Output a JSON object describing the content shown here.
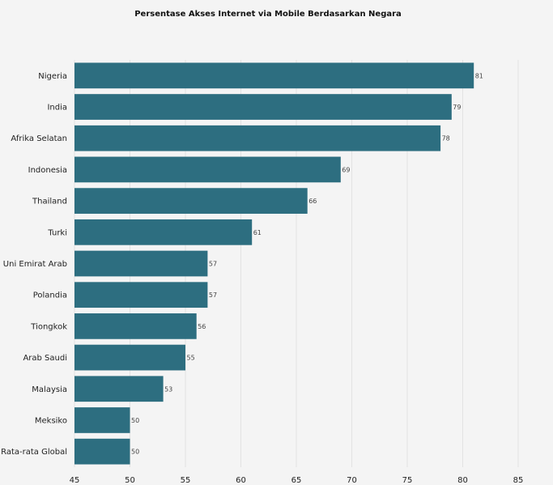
{
  "chart_data": {
    "type": "bar",
    "orientation": "horizontal",
    "title": "Persentase Akses Internet via Mobile Berdasarkan Negara",
    "xlabel": "",
    "ylabel": "",
    "categories": [
      "Nigeria",
      "India",
      "Afrika Selatan",
      "Indonesia",
      "Thailand",
      "Turki",
      "Uni Emirat Arab",
      "Polandia",
      "Tiongkok",
      "Arab Saudi",
      "Malaysia",
      "Meksiko",
      "Rata-rata Global"
    ],
    "values": [
      81,
      79,
      78,
      69,
      66,
      61,
      57,
      57,
      56,
      55,
      53,
      50,
      50
    ],
    "xlim": [
      45,
      85
    ],
    "xticks": [
      45,
      50,
      55,
      60,
      65,
      70,
      75,
      80,
      85
    ],
    "grid": true,
    "bar_color": "#2d6e80"
  }
}
